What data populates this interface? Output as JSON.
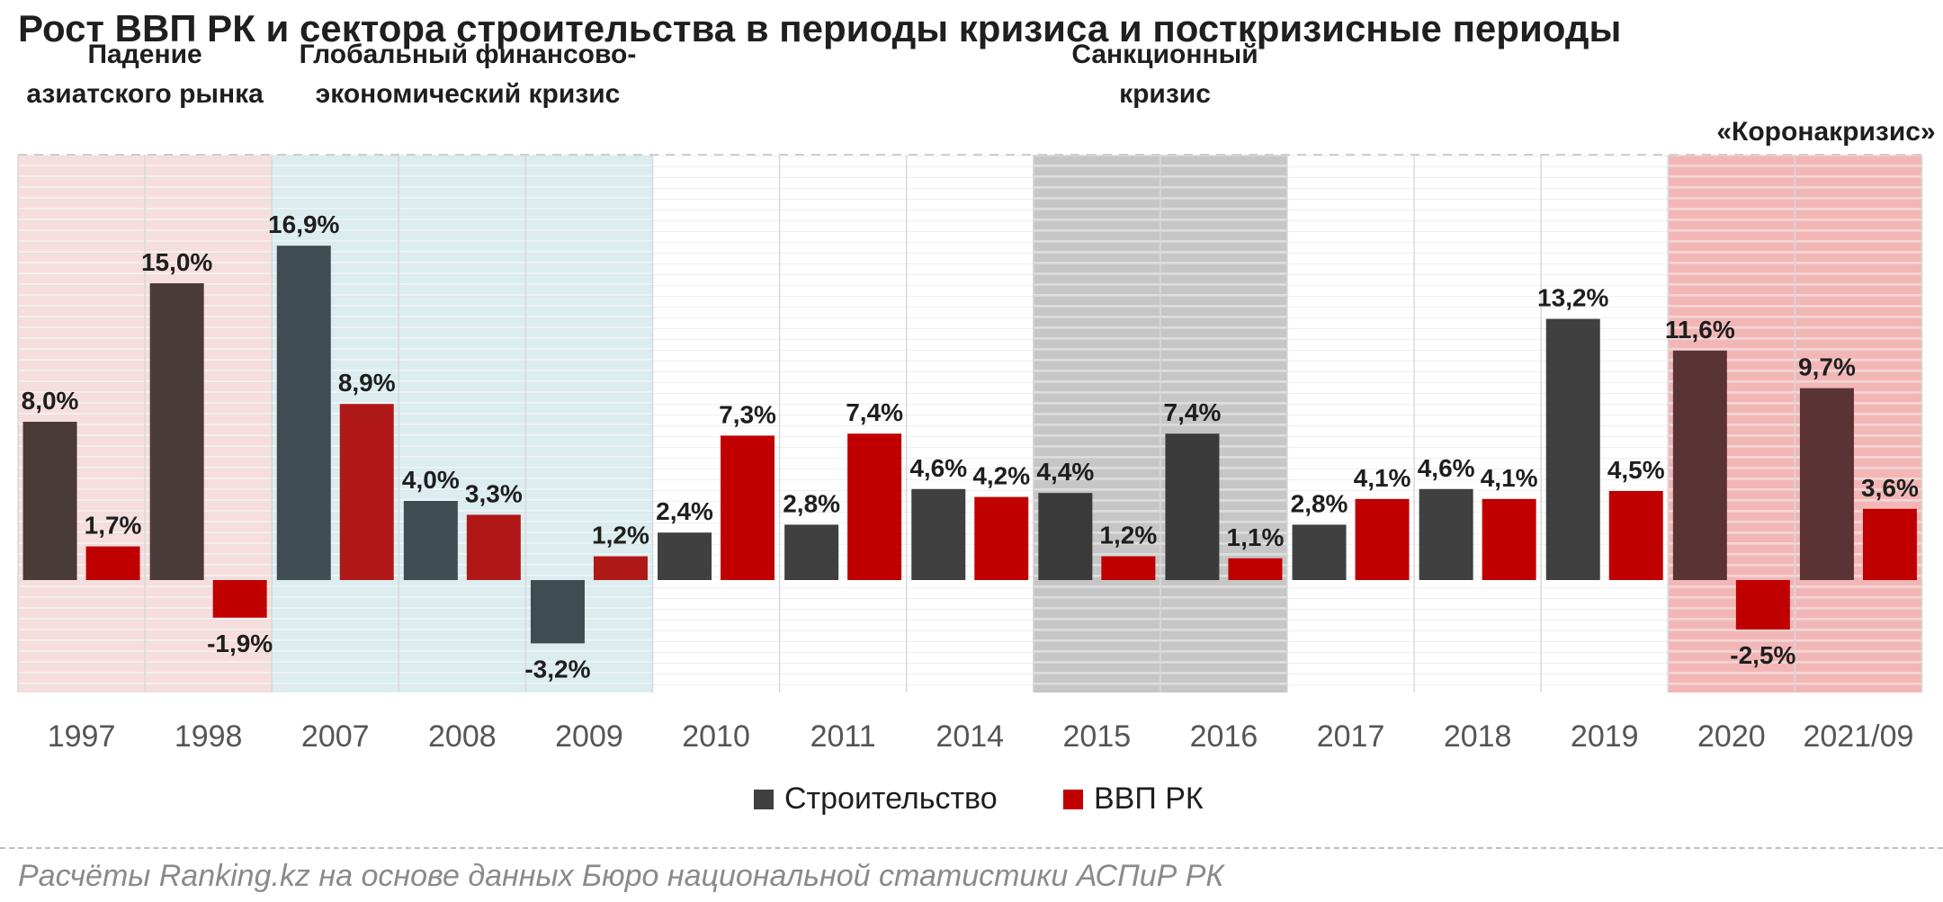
{
  "title": "Рост ВВП РК и сектора строительства в периоды кризиса и посткризисные периоды",
  "source": "Расчёты Ranking.kz на основе данных Бюро национальной статистики АСПиР РК",
  "period_labels": [
    {
      "lines": [
        "Падение",
        "азиатского рынка"
      ]
    },
    {
      "lines": [
        "Глобальный финансово-",
        "экономический кризис"
      ]
    },
    {
      "lines": [
        "Санкционный",
        "кризис"
      ]
    },
    {
      "lines": [
        "«Коронакризис»"
      ]
    }
  ],
  "colors": {
    "construction": "#404040",
    "gdp": "#c00000",
    "asia_band": "#f6dede",
    "global_band": "#dcedf0",
    "sanction_band": "#c6c6c6",
    "corona_band": "#f3b6b6"
  },
  "chart_data": {
    "type": "bar",
    "categories": [
      "1997",
      "1998",
      "2007",
      "2008",
      "2009",
      "2010",
      "2011",
      "2014",
      "2015",
      "2016",
      "2017",
      "2018",
      "2019",
      "2020",
      "2021/09"
    ],
    "series": [
      {
        "name": "Строительство",
        "values": [
          8.0,
          15.0,
          16.9,
          4.0,
          -3.2,
          2.4,
          2.8,
          4.6,
          4.4,
          7.4,
          2.8,
          4.6,
          13.2,
          11.6,
          9.7
        ],
        "labels": [
          "8,0%",
          "15,0%",
          "16,9%",
          "4,0%",
          "-3,2%",
          "2,4%",
          "2,8%",
          "4,6%",
          "4,4%",
          "7,4%",
          "2,8%",
          "4,6%",
          "13,2%",
          "11,6%",
          "9,7%"
        ]
      },
      {
        "name": "ВВП РК",
        "values": [
          1.7,
          -1.9,
          8.9,
          3.3,
          1.2,
          7.3,
          7.4,
          4.2,
          1.2,
          1.1,
          4.1,
          4.1,
          4.5,
          -2.5,
          3.6
        ],
        "labels": [
          "1,7%",
          "-1,9%",
          "8,9%",
          "3,3%",
          "1,2%",
          "7,3%",
          "7,4%",
          "4,2%",
          "1,2%",
          "1,1%",
          "4,1%",
          "4,1%",
          "4,5%",
          "-2,5%",
          "3,6%"
        ]
      }
    ],
    "ylim": [
      -5.3,
      20
    ],
    "grid": true,
    "legend": "bottom-center"
  }
}
